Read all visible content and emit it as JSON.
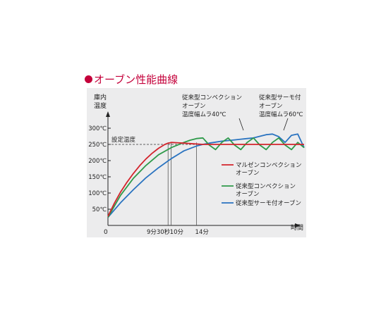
{
  "heading": "オーブン性能曲線",
  "chart_data": {
    "type": "line",
    "ylabel": "庫内温度",
    "xlabel": "時間",
    "origin_label": "0",
    "ylim": [
      0,
      300
    ],
    "yticks": [
      {
        "value": 50,
        "label": "50℃"
      },
      {
        "value": 100,
        "label": "100℃"
      },
      {
        "value": 150,
        "label": "150℃"
      },
      {
        "value": 200,
        "label": "200℃"
      },
      {
        "value": 250,
        "label": "250℃"
      },
      {
        "value": 300,
        "label": "300℃"
      }
    ],
    "xlim": [
      0,
      31
    ],
    "xticks": [
      {
        "value": 9.5,
        "label": "9分30秒"
      },
      {
        "value": 10,
        "label": "10分"
      },
      {
        "value": 14,
        "label": "14分"
      }
    ],
    "setpoint": {
      "value": 250,
      "label": "設定温度"
    },
    "annotations": [
      "従来型コンベクション",
      "オーブン",
      "温度幅ムラ40℃",
      "従来型サーモ付",
      "オーブン",
      "温度幅ムラ60℃"
    ],
    "series": [
      {
        "name": "マルゼンコンベクション",
        "name2": "オーブン",
        "color": "#d3242c",
        "x": [
          0,
          1,
          2,
          3,
          4,
          5,
          6,
          7,
          8,
          9,
          9.5,
          10,
          12,
          15,
          20,
          25,
          31
        ],
        "y": [
          28,
          68,
          103,
          133,
          160,
          184,
          205,
          223,
          238,
          250,
          254,
          256,
          254,
          250,
          250,
          250,
          250
        ]
      },
      {
        "name": "従来型コンベクション",
        "name2": "オーブン",
        "color": "#2e9a4a",
        "x": [
          0,
          2,
          4,
          6,
          8,
          10,
          11,
          12,
          13,
          14,
          15,
          16,
          17,
          18,
          19,
          20,
          21,
          22,
          23,
          24,
          25,
          26,
          27,
          28,
          29,
          30,
          31
        ],
        "y": [
          25,
          93,
          145,
          185,
          218,
          240,
          248,
          256,
          263,
          268,
          270,
          248,
          234,
          256,
          270,
          248,
          234,
          256,
          270,
          248,
          234,
          256,
          270,
          248,
          234,
          256,
          240
        ]
      },
      {
        "name": "従来型サーモ付オーブン",
        "name2": "",
        "color": "#2a73c0",
        "x": [
          0,
          2,
          4,
          6,
          8,
          10,
          12,
          14,
          15,
          16,
          17,
          18,
          19,
          20,
          21,
          22,
          23,
          24,
          25,
          26,
          27,
          28,
          29,
          30,
          31
        ],
        "y": [
          25,
          70,
          110,
          147,
          178,
          206,
          230,
          245,
          250,
          254,
          257,
          260,
          262,
          264,
          266,
          268,
          270,
          275,
          280,
          282,
          274,
          256,
          278,
          282,
          240
        ]
      }
    ]
  }
}
